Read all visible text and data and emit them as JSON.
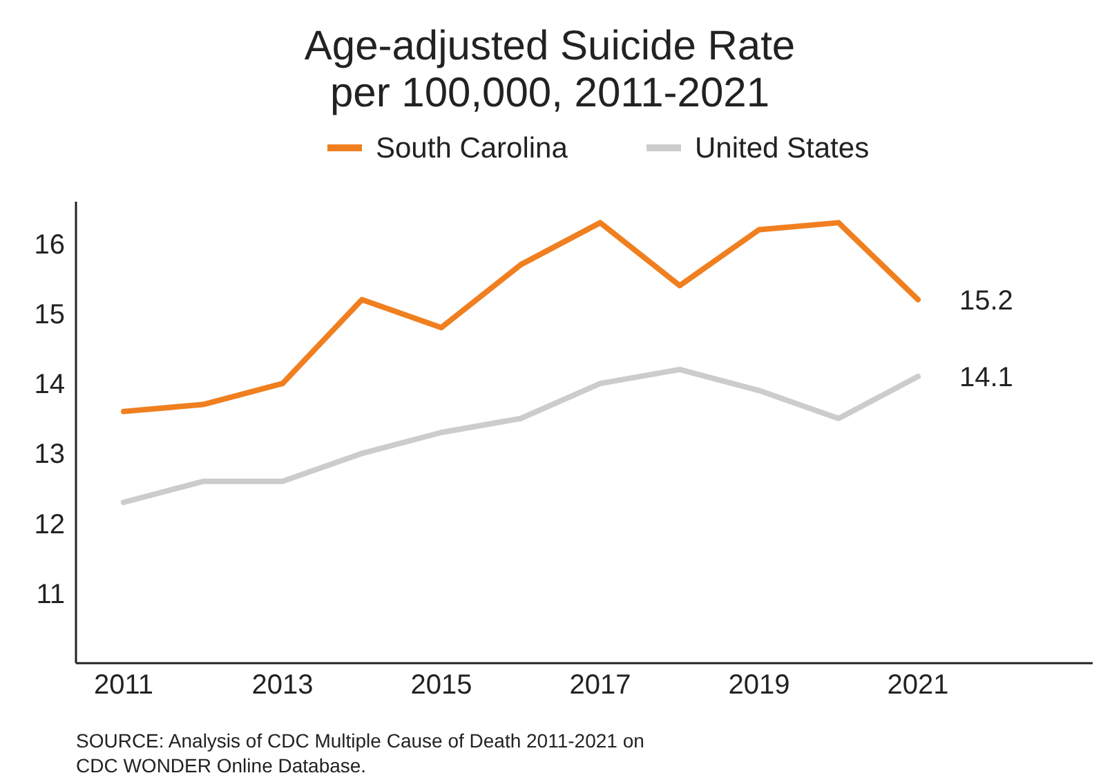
{
  "chart_data": {
    "type": "line",
    "title": "Age-adjusted Suicide Rate\nper 100,000, 2011-2021",
    "x": [
      2011,
      2012,
      2013,
      2014,
      2015,
      2016,
      2017,
      2018,
      2019,
      2020,
      2021
    ],
    "series": [
      {
        "name": "South Carolina",
        "color": "#f07f20",
        "values": [
          13.6,
          13.7,
          14.0,
          15.2,
          14.8,
          15.7,
          16.3,
          15.4,
          16.2,
          16.3,
          15.2
        ],
        "value_labels": [
          null,
          null,
          null,
          null,
          null,
          null,
          null,
          null,
          null,
          null,
          "15.2"
        ]
      },
      {
        "name": "United States",
        "color": "#cccccc",
        "values": [
          12.3,
          12.6,
          12.6,
          13.0,
          13.3,
          13.5,
          14.0,
          14.2,
          13.9,
          13.5,
          14.1
        ],
        "value_labels": [
          null,
          null,
          null,
          null,
          null,
          null,
          null,
          null,
          null,
          null,
          "14.1"
        ]
      }
    ],
    "xlim": [
      2010.4,
      2023.2
    ],
    "ylim": [
      10,
      16.6
    ],
    "xticks": [
      2011,
      2013,
      2015,
      2017,
      2019,
      2021
    ],
    "yticks": [
      11,
      12,
      13,
      14,
      15,
      16
    ],
    "grid": false,
    "legend": "top",
    "marker": "none",
    "line_style": "solid",
    "annotations": [
      "SOURCE: Analysis of CDC Multiple Cause of Death 2011-2021 on\nCDC WONDER Online Database."
    ]
  }
}
